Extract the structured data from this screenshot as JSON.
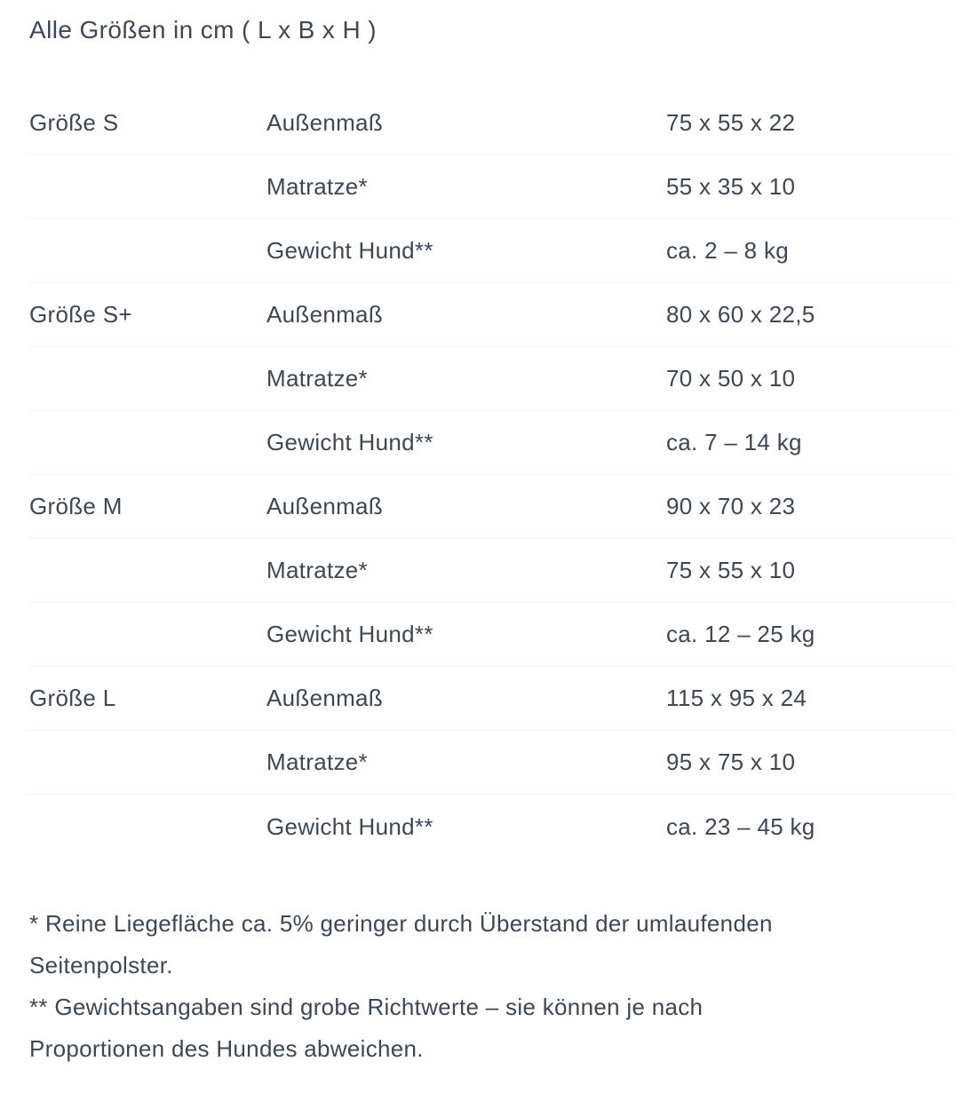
{
  "theme": {
    "background": "#ffffff",
    "text_color": "#3e4754",
    "divider_color": "#f2f2f2"
  },
  "section": {
    "title": "Alle Größen in cm ( L x B x H )"
  },
  "table": {
    "groups": [
      {
        "size": "Größe S",
        "rows": [
          {
            "label": "Außenmaß",
            "value": "75 x 55 x 22"
          },
          {
            "label": "Matratze*",
            "value": "55 x 35 x 10"
          },
          {
            "label": "Gewicht Hund**",
            "value": "ca. 2 – 8 kg"
          }
        ]
      },
      {
        "size": "Größe S+",
        "rows": [
          {
            "label": "Außenmaß",
            "value": "80 x 60 x 22,5"
          },
          {
            "label": "Matratze*",
            "value": "70 x 50 x 10"
          },
          {
            "label": "Gewicht Hund**",
            "value": "ca. 7 – 14 kg"
          }
        ]
      },
      {
        "size": "Größe M",
        "rows": [
          {
            "label": "Außenmaß",
            "value": "90 x 70 x 23"
          },
          {
            "label": "Matratze*",
            "value": "75 x 55 x 10"
          },
          {
            "label": "Gewicht Hund**",
            "value": "ca. 12 – 25 kg"
          }
        ]
      },
      {
        "size": "Größe L",
        "rows": [
          {
            "label": "Außenmaß",
            "value": "115 x 95 x 24"
          },
          {
            "label": "Matratze*",
            "value": "95 x 75 x 10"
          },
          {
            "label": "Gewicht Hund**",
            "value": "ca. 23 – 45 kg"
          }
        ]
      }
    ]
  },
  "footnotes": [
    {
      "lines": [
        "* Reine Liegefläche ca. 5% geringer durch Überstand der umlaufenden",
        "Seitenpolster."
      ]
    },
    {
      "lines": [
        "** Gewichtsangaben sind grobe Richtwerte – sie können je nach",
        "Proportionen des Hundes abweichen."
      ]
    }
  ]
}
